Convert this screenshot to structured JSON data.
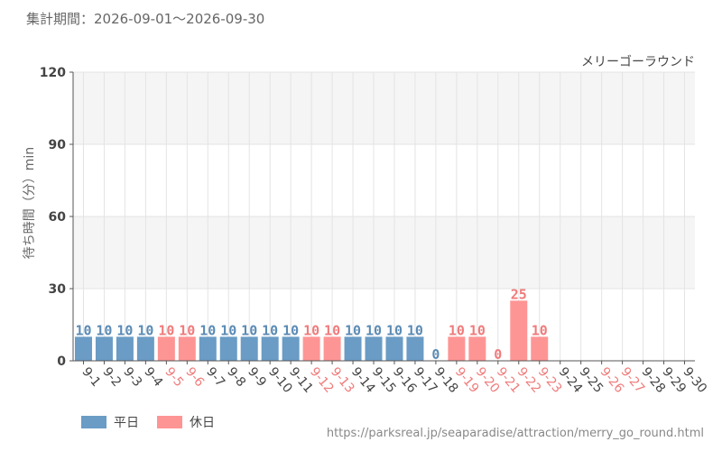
{
  "header": {
    "period": "集計期間：2026-09-01～2026-09-30",
    "attraction": "メリーゴーラウンド"
  },
  "colors": {
    "weekday": "#6a9cc5",
    "holiday": "#fe9595",
    "weekday_text": "#5b8bb5",
    "holiday_text": "#f07b7b",
    "band": "#f5f5f5",
    "grid": "#e4e4e4",
    "axis": "#555555"
  },
  "legend": {
    "weekday": "平日",
    "holiday": "休日"
  },
  "source": "https://parksreal.jp/seaparadise/attraction/merry_go_round.html",
  "chart_data": {
    "type": "bar",
    "ylabel": "待ち時間（分）min",
    "ylim": [
      0,
      120
    ],
    "yticks": [
      0,
      30,
      60,
      90,
      120
    ],
    "grid": true,
    "legend_position": "bottom-left",
    "categories": [
      "9-1",
      "9-2",
      "9-3",
      "9-4",
      "9-5",
      "9-6",
      "9-7",
      "9-8",
      "9-9",
      "9-10",
      "9-11",
      "9-12",
      "9-13",
      "9-14",
      "9-15",
      "9-16",
      "9-17",
      "9-18",
      "9-19",
      "9-20",
      "9-21",
      "9-22",
      "9-23",
      "9-24",
      "9-25",
      "9-26",
      "9-27",
      "9-28",
      "9-29",
      "9-30"
    ],
    "values": [
      10,
      10,
      10,
      10,
      10,
      10,
      10,
      10,
      10,
      10,
      10,
      10,
      10,
      10,
      10,
      10,
      10,
      0,
      10,
      10,
      0,
      25,
      10,
      null,
      null,
      null,
      null,
      null,
      null,
      null
    ],
    "day_type": [
      "weekday",
      "weekday",
      "weekday",
      "weekday",
      "holiday",
      "holiday",
      "weekday",
      "weekday",
      "weekday",
      "weekday",
      "weekday",
      "holiday",
      "holiday",
      "weekday",
      "weekday",
      "weekday",
      "weekday",
      "weekday",
      "holiday",
      "holiday",
      "holiday",
      "holiday",
      "holiday",
      "weekday",
      "weekday",
      "holiday",
      "holiday",
      "weekday",
      "weekday",
      "weekday"
    ]
  }
}
